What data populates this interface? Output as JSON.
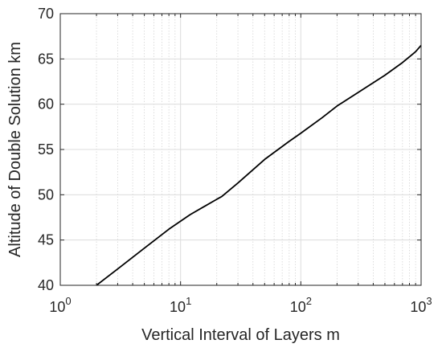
{
  "chart_data": {
    "type": "line",
    "xscale": "log",
    "xlabel": "Vertical Interval of Layers m",
    "ylabel": "Altitude of Double Solution km",
    "xlim": [
      1,
      1000
    ],
    "ylim": [
      40,
      70
    ],
    "x_ticks": [
      {
        "base": "10",
        "exp": "0",
        "value": 1
      },
      {
        "base": "10",
        "exp": "1",
        "value": 10
      },
      {
        "base": "10",
        "exp": "2",
        "value": 100
      },
      {
        "base": "10",
        "exp": "3",
        "value": 1000
      }
    ],
    "y_ticks": [
      "40",
      "45",
      "50",
      "55",
      "60",
      "65",
      "70"
    ],
    "grid": true,
    "line_color": "#000000",
    "series": [
      {
        "x": [
          2,
          3,
          5,
          8,
          12,
          20,
          22,
          30,
          50,
          80,
          100,
          150,
          200,
          300,
          500,
          700,
          900,
          1000
        ],
        "y": [
          40.0,
          41.8,
          44.1,
          46.2,
          47.8,
          49.5,
          49.8,
          51.3,
          53.9,
          55.9,
          56.8,
          58.5,
          59.8,
          61.3,
          63.2,
          64.6,
          65.8,
          66.5
        ]
      }
    ]
  }
}
